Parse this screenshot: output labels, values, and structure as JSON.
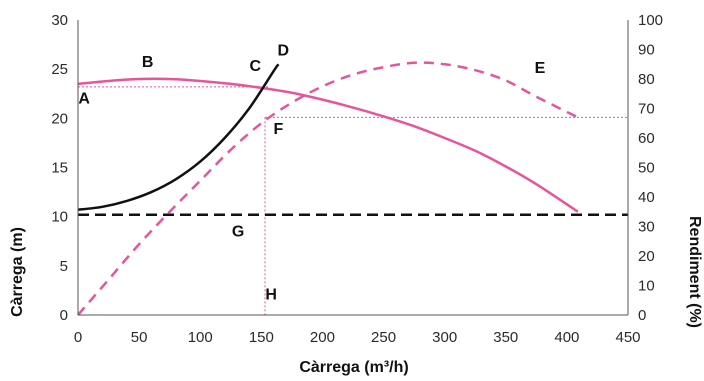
{
  "chart_data": {
    "type": "line",
    "title": "",
    "xlabel": "Càrrega (m³/h)",
    "ylabel_left": "Càrrega (m)",
    "ylabel_right": "Rendiment (%)",
    "xlim": [
      0,
      450
    ],
    "ylim_left": [
      0,
      30
    ],
    "ylim_right": [
      0,
      100
    ],
    "x_ticks": [
      0,
      50,
      100,
      150,
      200,
      250,
      300,
      350,
      400,
      450
    ],
    "y_left_ticks": [
      0,
      5,
      10,
      15,
      20,
      25,
      30
    ],
    "y_right_ticks": [
      0,
      10,
      20,
      30,
      40,
      50,
      60,
      70,
      80,
      90,
      100
    ],
    "grid": false,
    "colors": {
      "pink": "#e5559a",
      "black": "#111111"
    },
    "series": [
      {
        "axis": "left",
        "style": "solid",
        "color": "#e5559a",
        "points": [
          [
            0,
            23.5
          ],
          [
            25,
            23.8
          ],
          [
            50,
            24.0
          ],
          [
            75,
            24.0
          ],
          [
            100,
            23.8
          ],
          [
            125,
            23.5
          ],
          [
            150,
            23.1
          ],
          [
            175,
            22.6
          ],
          [
            200,
            21.9
          ],
          [
            225,
            21.1
          ],
          [
            250,
            20.2
          ],
          [
            275,
            19.2
          ],
          [
            300,
            18.0
          ],
          [
            325,
            16.7
          ],
          [
            350,
            15.1
          ],
          [
            375,
            13.3
          ],
          [
            409,
            10.5
          ]
        ]
      },
      {
        "axis": "left",
        "style": "solid",
        "color": "#111111",
        "points": [
          [
            0,
            10.7
          ],
          [
            20,
            11.0
          ],
          [
            40,
            11.6
          ],
          [
            60,
            12.5
          ],
          [
            80,
            13.8
          ],
          [
            100,
            15.6
          ],
          [
            120,
            18.0
          ],
          [
            140,
            21.0
          ],
          [
            160,
            24.8
          ],
          [
            164,
            25.5
          ]
        ]
      },
      {
        "axis": "left",
        "style": "dashed",
        "color": "#111111",
        "points": [
          [
            0,
            10.2
          ],
          [
            450,
            10.2
          ]
        ]
      },
      {
        "axis": "right",
        "style": "dashed",
        "color": "#e5559a",
        "points": [
          [
            0,
            0
          ],
          [
            25,
            12
          ],
          [
            50,
            24
          ],
          [
            75,
            35
          ],
          [
            100,
            45.5
          ],
          [
            125,
            56
          ],
          [
            150,
            65
          ],
          [
            175,
            72
          ],
          [
            200,
            77.5
          ],
          [
            225,
            81.5
          ],
          [
            250,
            84
          ],
          [
            275,
            85.5
          ],
          [
            300,
            85
          ],
          [
            325,
            83
          ],
          [
            350,
            79.5
          ],
          [
            375,
            74
          ],
          [
            409,
            67
          ]
        ]
      }
    ],
    "reference_lines": [
      {
        "color": "#e5559a",
        "style": "dotted",
        "axis": "left",
        "points": [
          [
            0,
            23.2
          ],
          [
            156,
            23.2
          ]
        ]
      },
      {
        "color": "#e5559a",
        "style": "dotted",
        "axis": "right",
        "points": [
          [
            153,
            67
          ],
          [
            450,
            67
          ]
        ]
      },
      {
        "color": "#e5559a",
        "style": "dotted",
        "axis": "right",
        "points": [
          [
            153,
            67
          ],
          [
            153,
            0
          ]
        ]
      }
    ],
    "annotations": [
      {
        "text": "A",
        "x": 5,
        "y": 21.5
      },
      {
        "text": "B",
        "x": 57,
        "y": 25.2
      },
      {
        "text": "C",
        "x": 145,
        "y": 24.8
      },
      {
        "text": "D",
        "x": 168,
        "y": 26.4
      },
      {
        "text": "E",
        "x": 378,
        "y": 24.6
      },
      {
        "text": "F",
        "x": 164,
        "y": 18.4
      },
      {
        "text": "G",
        "x": 131,
        "y": 8.0
      },
      {
        "text": "H",
        "x": 158,
        "y": 1.6
      }
    ]
  }
}
